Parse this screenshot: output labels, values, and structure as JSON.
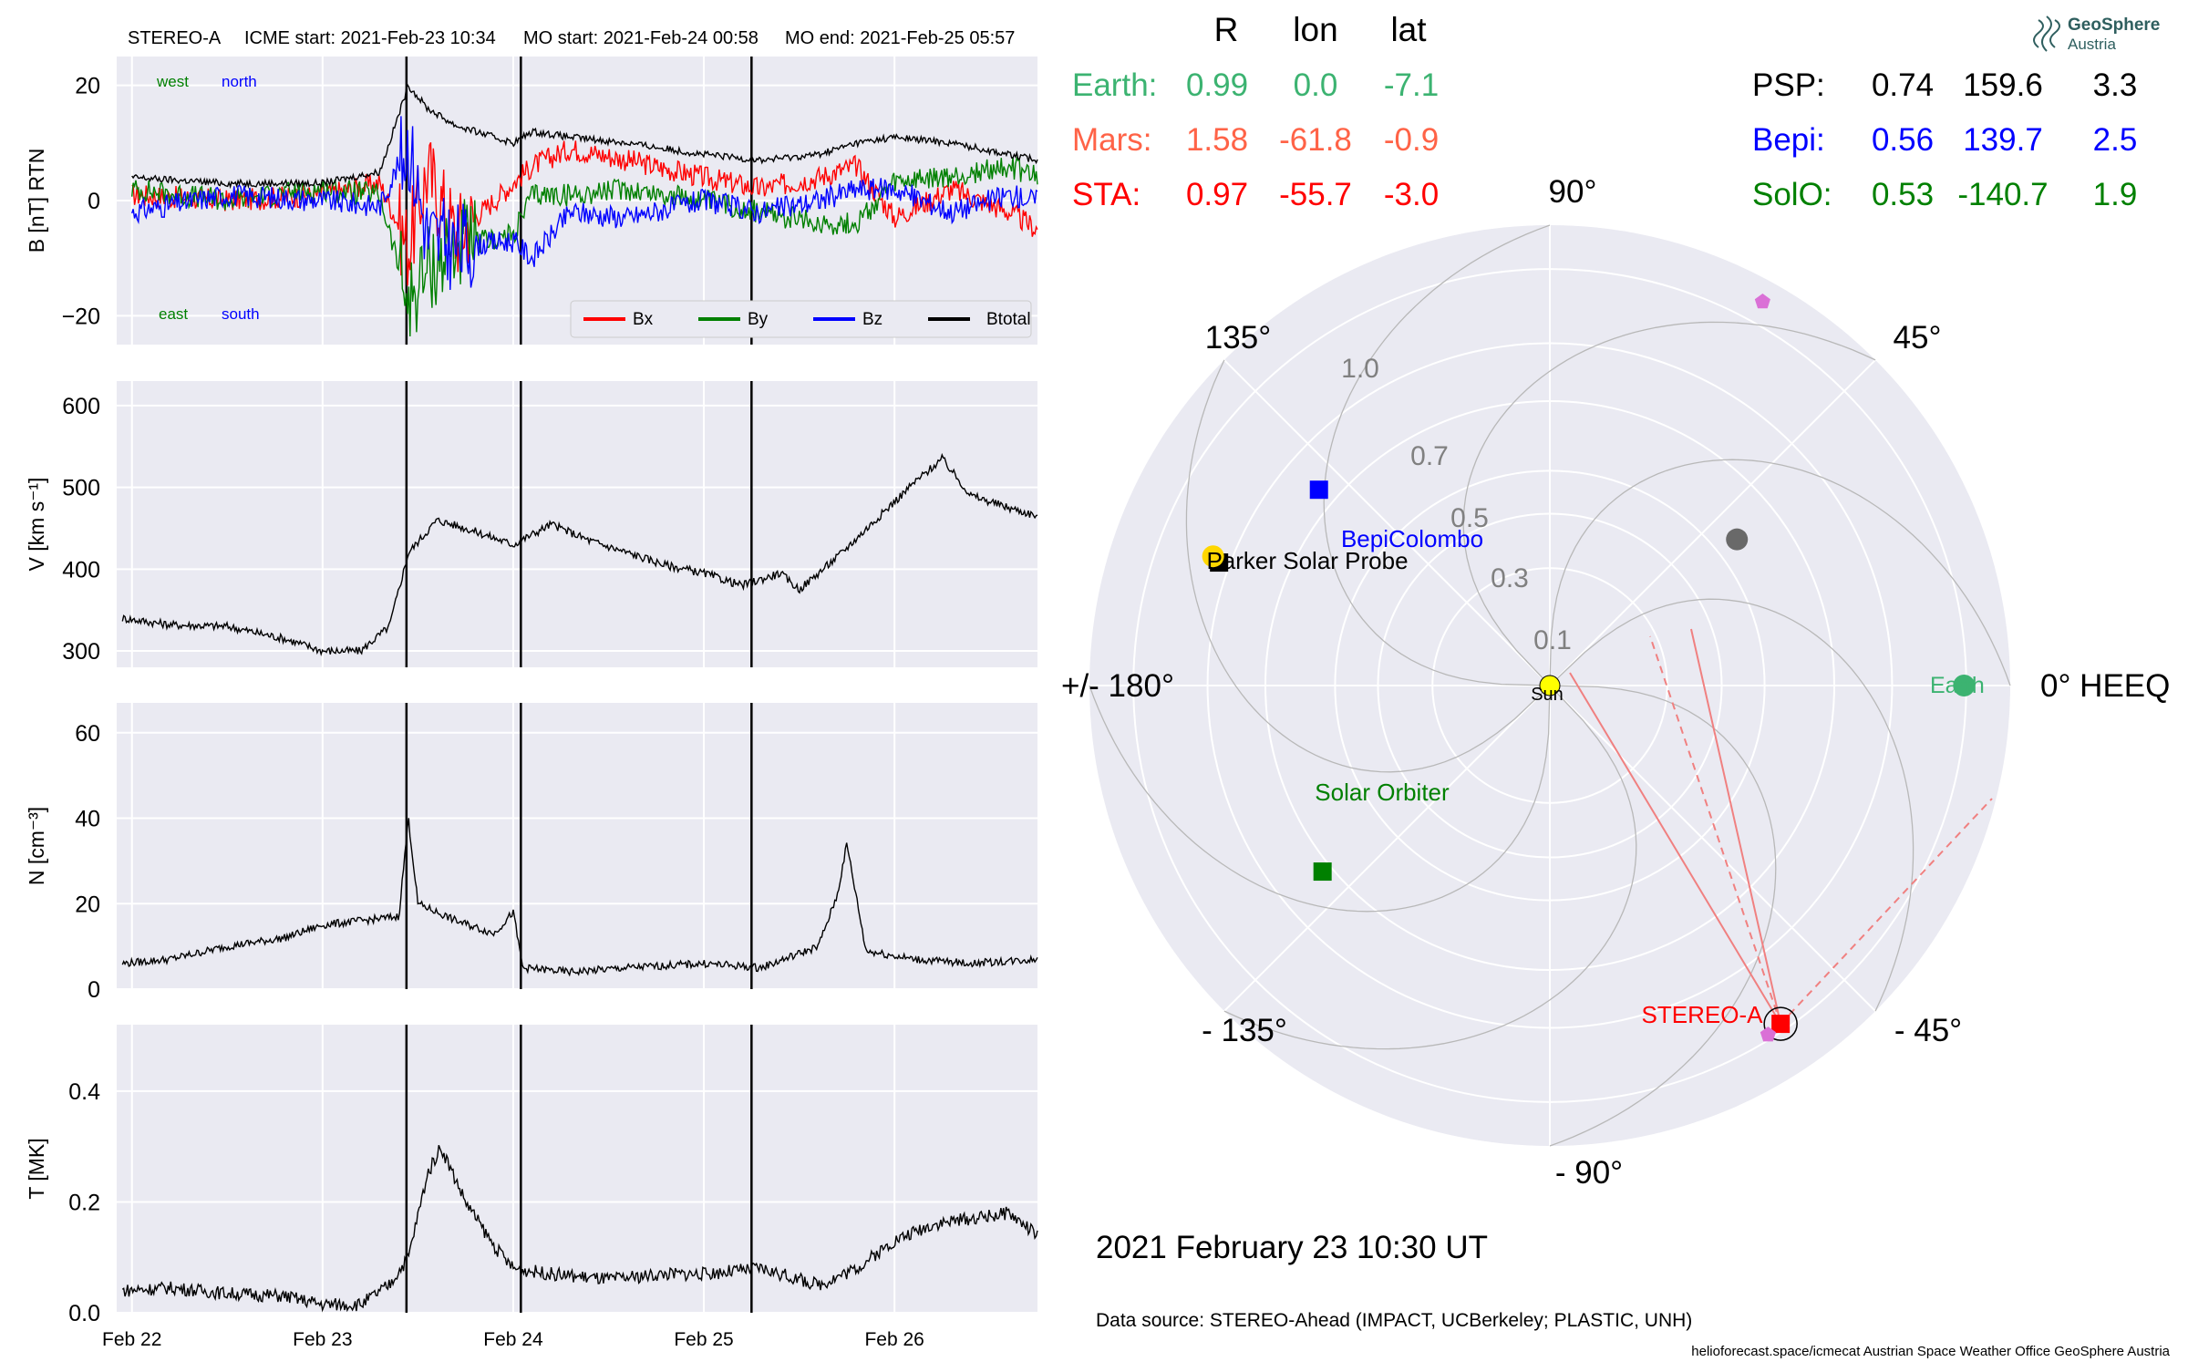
{
  "header": {
    "spacecraft": "STEREO-A",
    "icme_start": "ICME start: 2021-Feb-23 10:34",
    "mo_start": "MO start: 2021-Feb-24 00:58",
    "mo_end": "MO end: 2021-Feb-25 05:57"
  },
  "logo": {
    "line1": "GeoSphere",
    "line2": "Austria"
  },
  "date_label": "2021 February 23  10:30 UT",
  "source_label": "Data source: STEREO-Ahead (IMPACT, UCBerkeley; PLASTIC, UNH)",
  "footer_label": "helioforecast.space/icmecat   Austrian Space Weather Office   GeoSphere Austria",
  "position_table": {
    "headers": [
      "R",
      "lon",
      "lat"
    ],
    "left_rows": [
      {
        "name": "Earth:",
        "R": "0.99",
        "lon": "0.0",
        "lat": "-7.1",
        "color": "#3cb371"
      },
      {
        "name": "Mars:",
        "R": "1.58",
        "lon": "-61.8",
        "lat": "-0.9",
        "color": "#ff6347"
      },
      {
        "name": "STA:",
        "R": "0.97",
        "lon": "-55.7",
        "lat": "-3.0",
        "color": "#ff0000"
      }
    ],
    "right_rows": [
      {
        "name": "PSP:",
        "R": "0.74",
        "lon": "159.6",
        "lat": "3.3",
        "color": "#000000"
      },
      {
        "name": "Bepi:",
        "R": "0.56",
        "lon": "139.7",
        "lat": "2.5",
        "color": "#0000ff"
      },
      {
        "name": "SolO:",
        "R": "0.53",
        "lon": "-140.7",
        "lat": "1.9",
        "color": "#008000"
      }
    ]
  },
  "chart_data": [
    {
      "type": "line",
      "panel": "magnetic field",
      "ylabel": "B [nT] RTN",
      "ylim": [
        -25,
        25
      ],
      "yticks": [
        "20",
        "0",
        "−20"
      ],
      "annotations": {
        "west": "west",
        "north": "north",
        "east": "east",
        "south": "south"
      },
      "legend_position": "lower-right",
      "series": [
        {
          "name": "Bx",
          "color": "#ff0000",
          "x": [
            22.0,
            22.5,
            23.0,
            23.3,
            23.45,
            23.55,
            23.7,
            24.0,
            24.1,
            24.3,
            24.6,
            25.0,
            25.3,
            25.6,
            25.8,
            26.0,
            26.3,
            26.6,
            26.75
          ],
          "values": [
            1,
            0,
            1,
            3,
            -8,
            5,
            -6,
            3,
            6,
            9,
            7,
            4,
            2,
            4,
            6,
            -3,
            2,
            -2,
            -5
          ]
        },
        {
          "name": "By",
          "color": "#008000",
          "x": [
            22.0,
            22.5,
            23.0,
            23.3,
            23.45,
            23.55,
            23.7,
            24.0,
            24.1,
            24.3,
            24.6,
            25.0,
            25.3,
            25.6,
            25.8,
            26.0,
            26.3,
            26.6,
            26.75
          ],
          "values": [
            2,
            0,
            2,
            1,
            -18,
            -12,
            -8,
            -6,
            1,
            1,
            2,
            0,
            -2,
            -4,
            -4,
            3,
            4,
            6,
            4
          ]
        },
        {
          "name": "Bz",
          "color": "#0000ff",
          "x": [
            22.0,
            22.5,
            23.0,
            23.3,
            23.45,
            23.55,
            23.7,
            24.0,
            24.1,
            24.3,
            24.6,
            25.0,
            25.3,
            25.6,
            25.8,
            26.0,
            26.3,
            26.6,
            26.75
          ],
          "values": [
            -2,
            1,
            0,
            -1,
            10,
            -6,
            -8,
            -7,
            -10,
            -2,
            -3,
            0,
            -2,
            0,
            2,
            2,
            -2,
            1,
            0
          ]
        },
        {
          "name": "Btotal",
          "color": "#000000",
          "x": [
            22.0,
            22.5,
            23.0,
            23.3,
            23.45,
            23.55,
            23.7,
            24.0,
            24.1,
            24.3,
            24.6,
            25.0,
            25.3,
            25.6,
            25.8,
            26.0,
            26.3,
            26.6,
            26.75
          ],
          "values": [
            4,
            3,
            3,
            5,
            20,
            16,
            13,
            10,
            12,
            11,
            10,
            8,
            7,
            8,
            10,
            11,
            10,
            8,
            7
          ]
        }
      ]
    },
    {
      "type": "line",
      "panel": "speed",
      "ylabel": "V [km s⁻¹]",
      "ylim": [
        280,
        630
      ],
      "yticks": [
        "600",
        "500",
        "400",
        "300"
      ],
      "series": [
        {
          "name": "",
          "color": "#000000",
          "x": [
            21.95,
            22.2,
            22.5,
            22.8,
            23.0,
            23.2,
            23.35,
            23.45,
            23.6,
            23.75,
            24.0,
            24.2,
            24.4,
            24.6,
            24.8,
            25.0,
            25.2,
            25.4,
            25.5,
            25.7,
            25.9,
            26.1,
            26.25,
            26.4,
            26.6,
            26.75
          ],
          "values": [
            340,
            332,
            330,
            315,
            300,
            300,
            330,
            420,
            460,
            450,
            430,
            455,
            435,
            420,
            405,
            395,
            380,
            395,
            375,
            415,
            460,
            505,
            535,
            490,
            475,
            465
          ]
        }
      ]
    },
    {
      "type": "line",
      "panel": "density",
      "ylabel": "N [cm⁻³]",
      "ylim": [
        0,
        67
      ],
      "yticks": [
        "60",
        "40",
        "20",
        "0"
      ],
      "series": [
        {
          "name": "",
          "color": "#000000",
          "x": [
            21.95,
            22.2,
            22.5,
            22.8,
            23.0,
            23.2,
            23.4,
            23.45,
            23.5,
            23.7,
            23.9,
            24.0,
            24.05,
            24.3,
            24.6,
            25.0,
            25.3,
            25.6,
            25.7,
            25.75,
            25.85,
            26.1,
            26.4,
            26.75
          ],
          "values": [
            6,
            7,
            10,
            12,
            15,
            16,
            17,
            40,
            20,
            16,
            13,
            18,
            5,
            4,
            5,
            6,
            5,
            10,
            22,
            34,
            9,
            7,
            6,
            7
          ]
        }
      ]
    },
    {
      "type": "line",
      "panel": "temperature",
      "ylabel": "T [MK]",
      "ylim": [
        0,
        0.52
      ],
      "yticks": [
        "0.4",
        "0.2",
        "0.0"
      ],
      "series": [
        {
          "name": "",
          "color": "#000000",
          "x": [
            21.95,
            22.2,
            22.5,
            22.8,
            23.0,
            23.2,
            23.35,
            23.45,
            23.55,
            23.62,
            23.75,
            23.9,
            24.0,
            24.2,
            24.5,
            24.8,
            25.0,
            25.3,
            25.6,
            25.8,
            26.0,
            26.2,
            26.4,
            26.6,
            26.75
          ],
          "values": [
            0.04,
            0.045,
            0.035,
            0.03,
            0.015,
            0.015,
            0.05,
            0.1,
            0.25,
            0.3,
            0.2,
            0.12,
            0.08,
            0.07,
            0.06,
            0.07,
            0.07,
            0.08,
            0.05,
            0.08,
            0.13,
            0.16,
            0.17,
            0.18,
            0.14
          ]
        }
      ]
    },
    {
      "type": "scatter",
      "panel": "heliospheric position (polar)",
      "coordinate_system": "0° HEEQ",
      "angle_labels": {
        "a0": "0° HEEQ",
        "a45": "45°",
        "a90": "90°",
        "a135": "135°",
        "a180": "+/- 180°",
        "am45": "- 45°",
        "am90": "- 90°",
        "am135": "- 135°"
      },
      "radial_labels": [
        "0.1",
        "0.3",
        "0.5",
        "0.7",
        "1.0"
      ],
      "bodies": [
        {
          "name": "Earth",
          "r": 0.99,
          "lon": 0.0,
          "color": "#3cb371",
          "marker": "circle"
        },
        {
          "name": "STEREO-A",
          "r": 0.97,
          "lon": -55.7,
          "color": "#ff0000",
          "marker": "square"
        },
        {
          "name": "Parker Solar Probe",
          "r": 0.74,
          "lon": 159.6,
          "color": "#000000",
          "marker": "square"
        },
        {
          "name": "BepiColombo",
          "r": 0.56,
          "lon": 139.7,
          "color": "#0000ff",
          "marker": "square"
        },
        {
          "name": "Solar Orbiter",
          "r": 0.53,
          "lon": -140.7,
          "color": "#008000",
          "marker": "square"
        },
        {
          "name": "Sun",
          "r": 0.0,
          "lon": 0.0,
          "color": "#ffff00",
          "marker": "circle"
        },
        {
          "name": "",
          "r": 0.36,
          "lon": 38.0,
          "color": "#696969",
          "marker": "circle"
        },
        {
          "name": "",
          "r": 0.77,
          "lon": 159.0,
          "color": "#ffd700",
          "marker": "circle"
        },
        {
          "name": "",
          "r": 1.1,
          "lon": 61.0,
          "color": "#da70d6",
          "marker": "pentagon"
        },
        {
          "name": "",
          "r": 0.98,
          "lon": -58.0,
          "color": "#da70d6",
          "marker": "pentagon"
        }
      ]
    }
  ]
}
